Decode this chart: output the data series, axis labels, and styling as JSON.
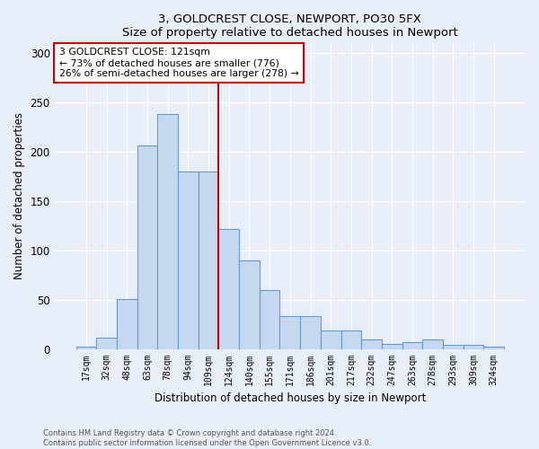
{
  "title": "3, GOLDCREST CLOSE, NEWPORT, PO30 5FX",
  "subtitle": "Size of property relative to detached houses in Newport",
  "xlabel": "Distribution of detached houses by size in Newport",
  "ylabel": "Number of detached properties",
  "bar_values": [
    2,
    11,
    51,
    206,
    238,
    180,
    180,
    122,
    90,
    60,
    33,
    33,
    19,
    19,
    10,
    5,
    7,
    10,
    4,
    4,
    2
  ],
  "bar_labels": [
    "17sqm",
    "32sqm",
    "48sqm",
    "63sqm",
    "78sqm",
    "94sqm",
    "109sqm",
    "124sqm",
    "140sqm",
    "155sqm",
    "171sqm",
    "186sqm",
    "201sqm",
    "217sqm",
    "232sqm",
    "247sqm",
    "263sqm",
    "278sqm",
    "293sqm",
    "309sqm",
    "324sqm"
  ],
  "bar_color": "#c5d8f0",
  "bar_edge_color": "#6699cc",
  "vline_color": "#cc0000",
  "annotation_title": "3 GOLDCREST CLOSE: 121sqm",
  "annotation_line1": "← 73% of detached houses are smaller (776)",
  "annotation_line2": "26% of semi-detached houses are larger (278) →",
  "annotation_box_color": "white",
  "annotation_box_edge": "#cc0000",
  "ylim": [
    0,
    310
  ],
  "yticks": [
    0,
    50,
    100,
    150,
    200,
    250,
    300
  ],
  "footer1": "Contains HM Land Registry data © Crown copyright and database right 2024.",
  "footer2": "Contains public sector information licensed under the Open Government Licence v3.0.",
  "bg_color": "#e8eef8",
  "plot_bg_color": "#e8eef8",
  "grid_color": "#ffffff"
}
